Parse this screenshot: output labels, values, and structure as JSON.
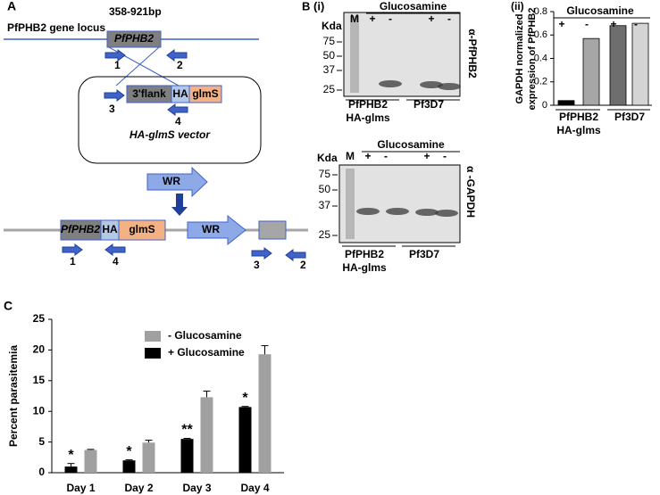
{
  "panel_a": {
    "label": "A",
    "locus": "PfPHB2 gene locus",
    "bp": "358-921bp",
    "gene": "PfPHB2",
    "primer_1": "1",
    "primer_2": "2",
    "flank": "3'flank",
    "ha": "HA",
    "glms": "glmS",
    "primer_3": "3",
    "primer_4": "4",
    "vector": "HA-glmS vector",
    "wr": "WR",
    "result_gene": "PfPHB2",
    "result_ha": "HA",
    "result_glms": "glmS",
    "result_wr": "WR",
    "result_primers": [
      "1",
      "4",
      "3",
      "2"
    ]
  },
  "panel_b": {
    "label": "B (i)",
    "blots": [
      {
        "header": "Glucosamine",
        "lanes": [
          "M",
          "+",
          "-",
          "+",
          "-"
        ],
        "unit": "Kda",
        "markers": [
          "75",
          "50",
          "37",
          "25"
        ],
        "antibody": "α-PfPHB2",
        "groups": [
          [
            "PfPHB2",
            "HA-glms"
          ],
          [
            "Pf3D7"
          ]
        ]
      },
      {
        "header": "Glucosamine",
        "lanes": [
          "M",
          "+",
          "-",
          "+",
          "-"
        ],
        "unit": "Kda",
        "markers": [
          "75",
          "50",
          "37",
          "25"
        ],
        "antibody": "α -GAPDH",
        "groups": [
          [
            "PfPHB2",
            "HA-glms"
          ],
          [
            "Pf3D7"
          ]
        ]
      }
    ]
  },
  "chart_data": [
    {
      "type": "bar",
      "label": "(ii)",
      "header": "Glucosamine",
      "ylabel": [
        "GAPDH normalized",
        "expression of PfPHB2"
      ],
      "categories": [
        "+",
        "-",
        "+",
        "-"
      ],
      "values": [
        0.04,
        0.57,
        0.68,
        0.7
      ],
      "colors": [
        "#000000",
        "#a6a6a6",
        "#6e6e6e",
        "#d4d4d4"
      ],
      "groups": [
        [
          "PfPHB2",
          "HA-glms"
        ],
        [
          "Pf3D7"
        ]
      ],
      "ylim": [
        0,
        0.8
      ],
      "yticks": [
        0,
        0.2,
        0.4,
        0.6,
        0.8
      ]
    },
    {
      "type": "grouped-bar",
      "label": "C",
      "ylabel": "Percent parasitemia",
      "categories": [
        "Day 1",
        "Day 2",
        "Day 3",
        "Day 4"
      ],
      "series": [
        {
          "name": "- Glucosamine",
          "color": "#a0a0a0",
          "values": [
            3.7,
            4.9,
            12.3,
            19.3
          ],
          "errors": [
            0.1,
            0.4,
            1.0,
            1.4
          ]
        },
        {
          "name": "+ Glucosamine",
          "color": "#000000",
          "values": [
            1.0,
            2.0,
            5.5,
            10.7
          ],
          "errors": [
            0.5,
            0.1,
            0.1,
            0.1
          ],
          "annotations": [
            "*",
            "*",
            "**",
            "*"
          ]
        }
      ],
      "ylim": [
        0,
        25
      ],
      "yticks": [
        0,
        5,
        10,
        15,
        20,
        25
      ]
    }
  ]
}
